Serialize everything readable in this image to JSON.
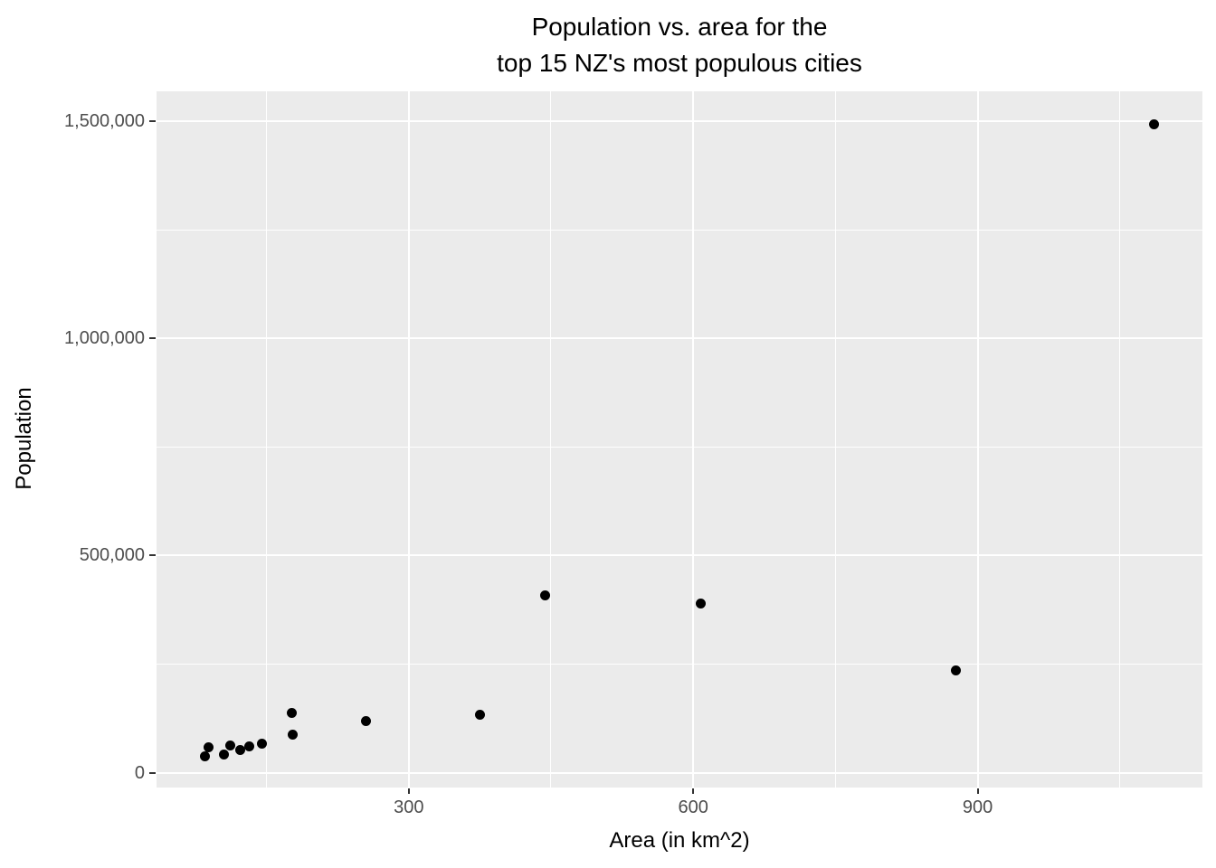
{
  "title": {
    "line1": "Population vs. area for the",
    "line2": "top 15 NZ's most populous cities"
  },
  "axes": {
    "x": {
      "label": "Area (in km^2)",
      "tick_values": [
        300,
        600,
        900
      ],
      "tick_labels": [
        "300",
        "600",
        "900"
      ],
      "minor_tick_values": [
        150,
        450,
        750,
        1050
      ]
    },
    "y": {
      "label": "Population",
      "tick_values": [
        0,
        500000,
        1000000,
        1500000
      ],
      "tick_labels": [
        "0",
        "500,000",
        "1,000,000",
        "1,500,000"
      ],
      "minor_tick_values": [
        250000,
        750000,
        1250000
      ]
    }
  },
  "chart_data": {
    "type": "scatter",
    "title": "Population vs. area for the top 15 NZ's most populous cities",
    "xlabel": "Area (in km^2)",
    "ylabel": "Population",
    "xlim": [
      34,
      1137
    ],
    "ylim": [
      -34000,
      1569000
    ],
    "grid": {
      "major": true,
      "minor": true
    },
    "legend_position": "none",
    "point_color": "#000000",
    "points": [
      {
        "area": 85,
        "population": 38000
      },
      {
        "area": 89,
        "population": 59000
      },
      {
        "area": 105,
        "population": 42000
      },
      {
        "area": 112,
        "population": 63000
      },
      {
        "area": 122,
        "population": 53000
      },
      {
        "area": 132,
        "population": 61000
      },
      {
        "area": 145,
        "population": 67000
      },
      {
        "area": 177,
        "population": 137000
      },
      {
        "area": 178,
        "population": 87000
      },
      {
        "area": 255,
        "population": 120000
      },
      {
        "area": 375,
        "population": 133000
      },
      {
        "area": 444,
        "population": 408000
      },
      {
        "area": 608,
        "population": 390000
      },
      {
        "area": 877,
        "population": 235000
      },
      {
        "area": 1086,
        "population": 1494000
      }
    ]
  },
  "style": {
    "panel_background": "#EBEBEB",
    "grid_color": "#FFFFFF",
    "tick_text_color": "#4D4D4D",
    "title_color": "#000000",
    "tick_mark_color": "#333333"
  }
}
